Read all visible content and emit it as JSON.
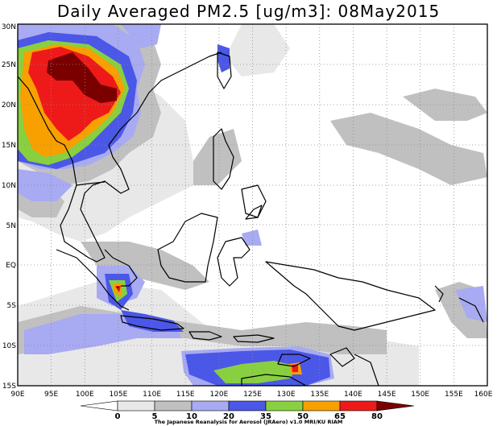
{
  "title": "Daily Averaged PM2.5 [ug/m3]: 08May2015",
  "credit": "The Japanese Reanalysis for Aerosol (JRAero) v1.0 MRI/KU RIAM",
  "map": {
    "type": "map",
    "variable": "PM2.5",
    "units": "ug/m3",
    "date": "08May2015",
    "lon_range": [
      90,
      160
    ],
    "lat_range": [
      -15,
      30
    ],
    "grid": true,
    "lon_ticks": [
      "90E",
      "95E",
      "100E",
      "105E",
      "110E",
      "115E",
      "120E",
      "125E",
      "130E",
      "135E",
      "140E",
      "145E",
      "150E",
      "155E",
      "160E"
    ],
    "lat_ticks": [
      "15S",
      "10S",
      "5S",
      "EQ",
      "5N",
      "10N",
      "15N",
      "20N",
      "25N",
      "30N"
    ]
  },
  "legend": {
    "labels": [
      "0",
      "5",
      "10",
      "20",
      "35",
      "50",
      "65",
      "80"
    ],
    "colors": [
      "#ffffff",
      "#e8e8e8",
      "#c0c0c0",
      "#a8aaf2",
      "#4b57e6",
      "#88d040",
      "#f7a000",
      "#ee1a1a",
      "#7a0000"
    ]
  }
}
